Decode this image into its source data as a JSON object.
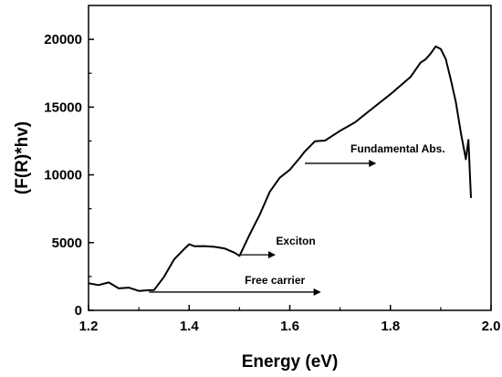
{
  "chart_data": {
    "type": "line",
    "xlabel": "Energy (eV)",
    "ylabel": "(F(R)*hv)",
    "xlim": [
      1.2,
      2.0
    ],
    "ylim": [
      0,
      22500
    ],
    "x_ticks": [
      1.2,
      1.4,
      1.6,
      1.8,
      2.0
    ],
    "y_ticks": [
      0,
      5000,
      10000,
      15000,
      20000
    ],
    "x_tick_labels": [
      "1.2",
      "1.4",
      "1.6",
      "1.8",
      "2.0"
    ],
    "y_tick_labels": [
      "0",
      "5000",
      "10000",
      "15000",
      "20000"
    ],
    "grid": false,
    "series": [
      {
        "x": [
          1.2,
          1.22,
          1.24,
          1.26,
          1.28,
          1.3,
          1.32,
          1.33,
          1.35,
          1.37,
          1.39,
          1.4,
          1.41,
          1.43,
          1.45,
          1.47,
          1.49,
          1.5,
          1.52,
          1.54,
          1.56,
          1.58,
          1.6,
          1.62,
          1.63,
          1.65,
          1.67,
          1.7,
          1.73,
          1.76,
          1.8,
          1.84,
          1.86,
          1.87,
          1.88,
          1.89,
          1.9,
          1.91,
          1.92,
          1.93,
          1.94,
          1.95,
          1.955,
          1.96
        ],
        "y": [
          2000,
          1900,
          2000,
          1700,
          1600,
          1500,
          1450,
          1500,
          2500,
          3700,
          4600,
          4800,
          4800,
          4700,
          4700,
          4600,
          4200,
          4100,
          5500,
          7100,
          8700,
          9800,
          10400,
          11200,
          11800,
          12400,
          12600,
          13200,
          13900,
          14800,
          15900,
          17300,
          18200,
          18600,
          18900,
          19500,
          19300,
          18500,
          17100,
          15300,
          13200,
          11100,
          12600,
          8300
        ]
      }
    ],
    "annotations": [
      {
        "text": "Fundamental Abs.",
        "arrow_from": [
          1.63,
          10850
        ],
        "arrow_to": [
          1.77,
          10850
        ]
      },
      {
        "text": "Exciton",
        "arrow_from": [
          1.5,
          4100
        ],
        "arrow_to": [
          1.57,
          4100
        ]
      },
      {
        "text": "Free carrier",
        "arrow_from": [
          1.32,
          1350
        ],
        "arrow_to": [
          1.66,
          1350
        ]
      }
    ]
  }
}
